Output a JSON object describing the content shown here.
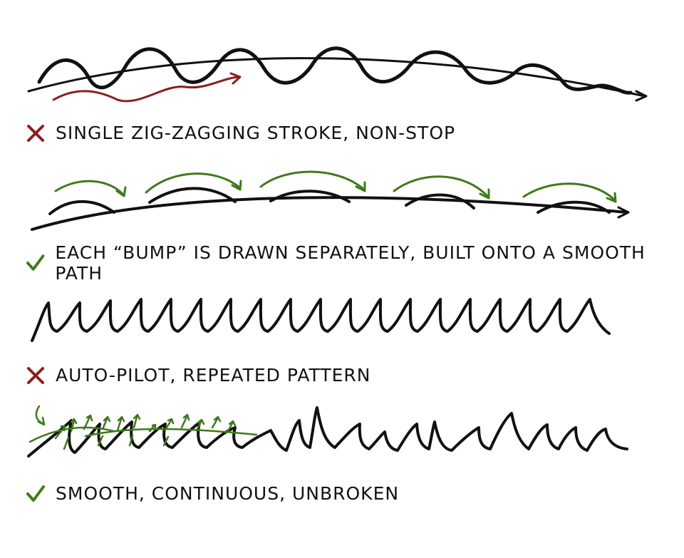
{
  "captions": [
    {
      "text": "SINGLE ZIG-ZAGGING STROKE, NON-STOP",
      "verdict": "wrong",
      "icon": "x-mark-icon"
    },
    {
      "text": "EACH “BUMP” IS DRAWN SEPARATELY, BUILT ONTO A SMOOTH PATH",
      "verdict": "correct",
      "icon": "check-mark-icon"
    },
    {
      "text": "AUTO-PILOT, REPEATED PATTERN",
      "verdict": "wrong",
      "icon": "x-mark-icon"
    },
    {
      "text": "SMOOTH, CONTINUOUS, UNBROKEN",
      "verdict": "correct",
      "icon": "check-mark-icon"
    }
  ],
  "colors": {
    "ink": "#111111",
    "wrong": "#8a1f1f",
    "correct": "#3f7a1a"
  }
}
